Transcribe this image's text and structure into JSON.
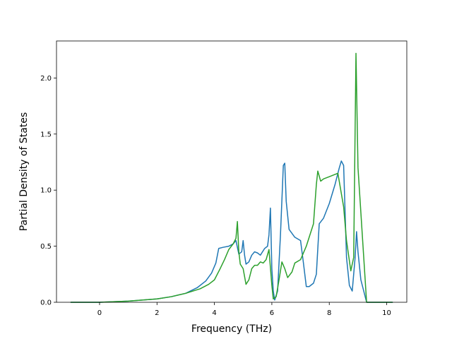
{
  "chart_data": {
    "type": "line",
    "title": "",
    "xlabel": "Frequency (THz)",
    "ylabel": "Partial Density of States",
    "xlim": [
      -1.5,
      10.7
    ],
    "ylim": [
      0,
      2.33
    ],
    "xticks": [
      0,
      2,
      4,
      6,
      8,
      10
    ],
    "xtick_labels": [
      "0",
      "2",
      "4",
      "6",
      "8",
      "10"
    ],
    "yticks": [
      0.0,
      0.5,
      1.0,
      1.5,
      2.0
    ],
    "ytick_labels": [
      "0.0",
      "0.5",
      "1.0",
      "1.5",
      "2.0"
    ],
    "grid": false,
    "legend": "none",
    "series": [
      {
        "color": "#1f77b4",
        "x": [
          -1.0,
          0.0,
          1.0,
          2.0,
          2.5,
          3.0,
          3.4,
          3.7,
          3.9,
          4.05,
          4.15,
          4.3,
          4.5,
          4.65,
          4.75,
          4.85,
          4.95,
          5.0,
          5.05,
          5.1,
          5.2,
          5.3,
          5.4,
          5.5,
          5.6,
          5.75,
          5.85,
          5.9,
          5.95,
          6.0,
          6.05,
          6.1,
          6.2,
          6.3,
          6.4,
          6.45,
          6.5,
          6.6,
          6.8,
          7.0,
          7.1,
          7.2,
          7.3,
          7.45,
          7.55,
          7.65,
          7.8,
          8.0,
          8.2,
          8.35,
          8.42,
          8.5,
          8.6,
          8.7,
          8.8,
          8.9,
          8.95,
          9.0,
          9.1,
          9.3,
          10.0,
          10.2
        ],
        "y": [
          0.0,
          0.0,
          0.01,
          0.03,
          0.05,
          0.08,
          0.13,
          0.19,
          0.26,
          0.35,
          0.48,
          0.49,
          0.5,
          0.52,
          0.55,
          0.43,
          0.45,
          0.55,
          0.42,
          0.34,
          0.36,
          0.42,
          0.45,
          0.44,
          0.42,
          0.48,
          0.5,
          0.6,
          0.84,
          0.3,
          0.1,
          0.02,
          0.1,
          0.6,
          1.22,
          1.24,
          0.9,
          0.65,
          0.58,
          0.55,
          0.35,
          0.14,
          0.14,
          0.17,
          0.25,
          0.7,
          0.75,
          0.88,
          1.05,
          1.2,
          1.26,
          1.22,
          0.4,
          0.15,
          0.1,
          0.4,
          0.63,
          0.45,
          0.2,
          0.0,
          0.0,
          0.0
        ]
      },
      {
        "color": "#2ca02c",
        "x": [
          -1.0,
          0.0,
          1.0,
          2.0,
          2.5,
          3.0,
          3.5,
          3.8,
          4.0,
          4.2,
          4.35,
          4.5,
          4.65,
          4.75,
          4.8,
          4.85,
          4.9,
          5.0,
          5.1,
          5.2,
          5.3,
          5.4,
          5.5,
          5.6,
          5.7,
          5.8,
          5.9,
          6.0,
          6.05,
          6.15,
          6.25,
          6.35,
          6.45,
          6.55,
          6.7,
          6.8,
          7.0,
          7.2,
          7.45,
          7.55,
          7.6,
          7.7,
          7.8,
          8.0,
          8.2,
          8.3,
          8.4,
          8.5,
          8.6,
          8.75,
          8.85,
          8.93,
          9.0,
          9.2,
          9.3,
          10.0,
          10.2
        ],
        "y": [
          0.0,
          0.0,
          0.01,
          0.03,
          0.05,
          0.08,
          0.12,
          0.16,
          0.2,
          0.3,
          0.38,
          0.47,
          0.52,
          0.57,
          0.72,
          0.45,
          0.34,
          0.3,
          0.16,
          0.2,
          0.3,
          0.33,
          0.33,
          0.36,
          0.35,
          0.38,
          0.47,
          0.15,
          0.03,
          0.05,
          0.2,
          0.36,
          0.3,
          0.22,
          0.27,
          0.35,
          0.38,
          0.5,
          0.7,
          1.05,
          1.17,
          1.08,
          1.1,
          1.12,
          1.14,
          1.15,
          1.0,
          0.85,
          0.55,
          0.28,
          0.4,
          2.22,
          1.2,
          0.4,
          0.0,
          0.0,
          0.0
        ]
      }
    ]
  }
}
